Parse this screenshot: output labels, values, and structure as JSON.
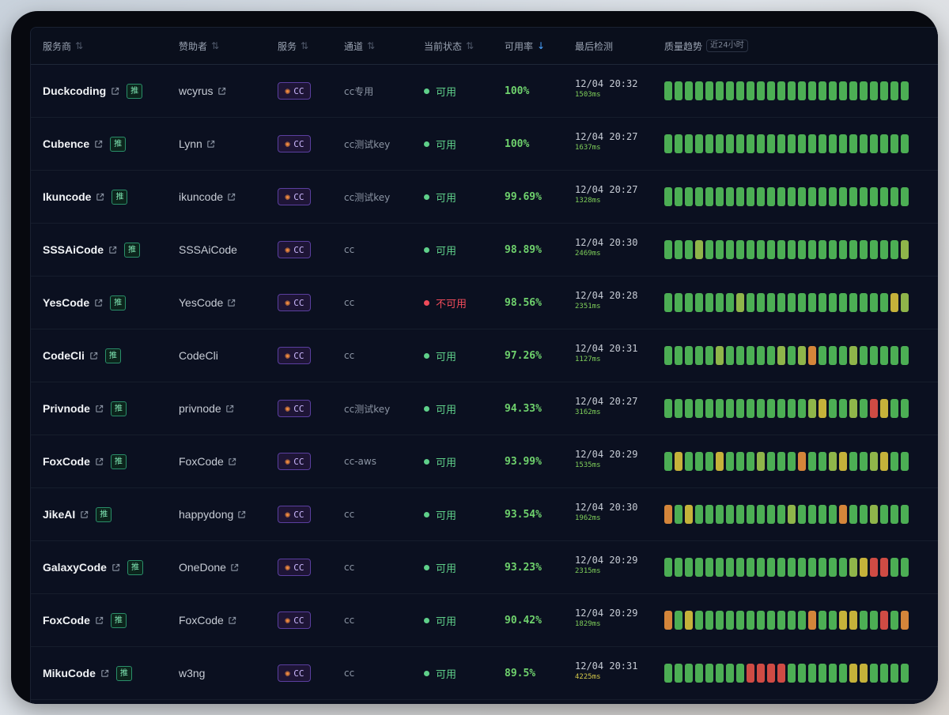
{
  "colors": {
    "green": "#4cae54",
    "lime": "#8fb54a",
    "yellow": "#c5b23a",
    "orange": "#d4853a",
    "red": "#cf4b44",
    "status_ok": "#5fd08a",
    "status_bad": "#ef4b5a",
    "rate_green": "#6fd26d",
    "latency_green": "#7fcf5a",
    "latency_yellow": "#d4c94a"
  },
  "header": {
    "provider": "服务商",
    "sponsor": "赞助者",
    "service": "服务",
    "channel": "通道",
    "status": "当前状态",
    "availability": "可用率",
    "last_check": "最后检测",
    "trend": "质量趋势",
    "trend_badge": "近24小时"
  },
  "icons": {
    "sort": "sort-arrows-icon",
    "sort_active": "sort-desc-arrow-icon",
    "external": "external-link-icon",
    "service": "claude-sunburst-icon"
  },
  "rows": [
    {
      "provider": "Duckcoding",
      "recommend": "推",
      "sponsor": "wcyrus",
      "sponsor_link": true,
      "service": "CC",
      "channel": "cc专用",
      "status": "可用",
      "ok": true,
      "rate": "100%",
      "time": "12/04 20:32",
      "latency": "1503ms",
      "latency_level": "green",
      "trend": "GGGGGGGGGGGGGGGGGGGGGGGG"
    },
    {
      "provider": "Cubence",
      "recommend": "推",
      "sponsor": "Lynn",
      "sponsor_link": true,
      "service": "CC",
      "channel": "cc测试key",
      "status": "可用",
      "ok": true,
      "rate": "100%",
      "time": "12/04 20:27",
      "latency": "1637ms",
      "latency_level": "green",
      "trend": "GGGGGGGGGGGGGGGGGGGGGGGG"
    },
    {
      "provider": "Ikuncode",
      "recommend": "推",
      "sponsor": "ikuncode",
      "sponsor_link": true,
      "service": "CC",
      "channel": "cc测试key",
      "status": "可用",
      "ok": true,
      "rate": "99.69%",
      "time": "12/04 20:27",
      "latency": "1328ms",
      "latency_level": "green",
      "trend": "GGGGGGGGGGGGGGGGGGGGGGGG"
    },
    {
      "provider": "SSSAiCode",
      "recommend": "推",
      "sponsor": "SSSAiCode",
      "sponsor_link": false,
      "service": "CC",
      "channel": "cc",
      "status": "可用",
      "ok": true,
      "rate": "98.89%",
      "time": "12/04 20:30",
      "latency": "2469ms",
      "latency_level": "green",
      "trend": "GGGLGGGGGGGGGGGGGGGGGGGL"
    },
    {
      "provider": "YesCode",
      "recommend": "推",
      "sponsor": "YesCode",
      "sponsor_link": true,
      "service": "CC",
      "channel": "cc",
      "status": "不可用",
      "ok": false,
      "rate": "98.56%",
      "time": "12/04 20:28",
      "latency": "2351ms",
      "latency_level": "green",
      "trend": "GGGGGGGLGGGGGGGGGGGGGGYL"
    },
    {
      "provider": "CodeCli",
      "recommend": "推",
      "sponsor": "CodeCli",
      "sponsor_link": false,
      "service": "CC",
      "channel": "cc",
      "status": "可用",
      "ok": true,
      "rate": "97.26%",
      "time": "12/04 20:31",
      "latency": "1127ms",
      "latency_level": "green",
      "trend": "GGGGGLGGGGGLGLOGGGLGGGGG"
    },
    {
      "provider": "Privnode",
      "recommend": "推",
      "sponsor": "privnode",
      "sponsor_link": true,
      "service": "CC",
      "channel": "cc测试key",
      "status": "可用",
      "ok": true,
      "rate": "94.33%",
      "time": "12/04 20:27",
      "latency": "3162ms",
      "latency_level": "green",
      "trend": "GGGGGGGGGGGGGGLYGGLGRYGG"
    },
    {
      "provider": "FoxCode",
      "recommend": "推",
      "sponsor": "FoxCode",
      "sponsor_link": true,
      "service": "CC",
      "channel": "cc-aws",
      "status": "可用",
      "ok": true,
      "rate": "93.99%",
      "time": "12/04 20:29",
      "latency": "1535ms",
      "latency_level": "green",
      "trend": "GYGGGYGGGLGGGOGGLYGGLYGG"
    },
    {
      "provider": "JikeAI",
      "recommend": "推",
      "sponsor": "happydong",
      "sponsor_link": true,
      "service": "CC",
      "channel": "cc",
      "status": "可用",
      "ok": true,
      "rate": "93.54%",
      "time": "12/04 20:30",
      "latency": "1962ms",
      "latency_level": "green",
      "trend": "OGYGGGGGGGGGLGGGGOGGLGGG"
    },
    {
      "provider": "GalaxyCode",
      "recommend": "推",
      "sponsor": "OneDone",
      "sponsor_link": true,
      "service": "CC",
      "channel": "cc",
      "status": "可用",
      "ok": true,
      "rate": "93.23%",
      "time": "12/04 20:29",
      "latency": "2315ms",
      "latency_level": "green",
      "trend": "GGGGGGGGGGGGGGGGGGLYRRGG"
    },
    {
      "provider": "FoxCode",
      "recommend": "推",
      "sponsor": "FoxCode",
      "sponsor_link": true,
      "service": "CC",
      "channel": "cc",
      "status": "可用",
      "ok": true,
      "rate": "90.42%",
      "time": "12/04 20:29",
      "latency": "1829ms",
      "latency_level": "green",
      "trend": "OGYGGGGGGGGGGGOGGYYGGRGO"
    },
    {
      "provider": "MikuCode",
      "recommend": "推",
      "sponsor": "w3ng",
      "sponsor_link": false,
      "service": "CC",
      "channel": "cc",
      "status": "可用",
      "ok": true,
      "rate": "89.5%",
      "time": "12/04 20:31",
      "latency": "4225ms",
      "latency_level": "yellow",
      "trend": "GGGGGGGGRRRRGGGGGGYYGGGG"
    }
  ]
}
